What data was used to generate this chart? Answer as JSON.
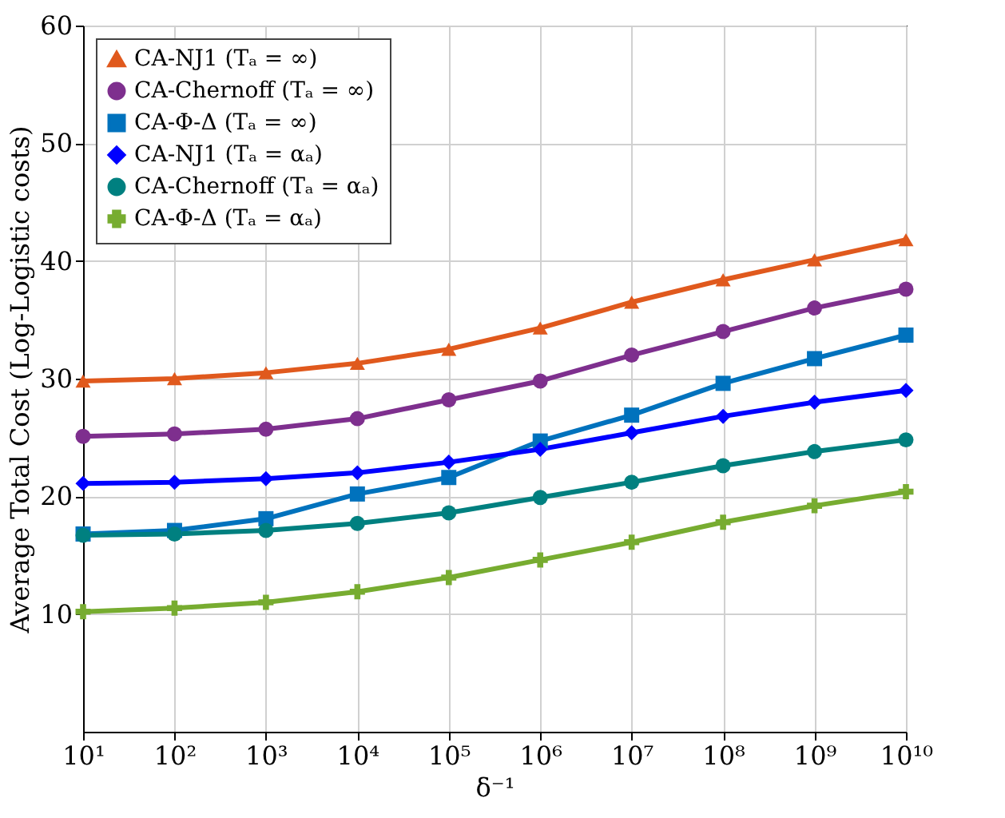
{
  "chart_data": {
    "type": "line",
    "xlabel": "δ⁻¹",
    "ylabel": "Average Total Cost (Log-Logistic costs)",
    "x": [
      10,
      100,
      1000,
      10000,
      100000,
      1000000,
      10000000,
      100000000,
      1000000000,
      10000000000
    ],
    "log": "x",
    "xlim": [
      10,
      10000000000
    ],
    "xticks": [
      {
        "value": 10,
        "label": "10¹"
      },
      {
        "value": 100,
        "label": "10²"
      },
      {
        "value": 1000,
        "label": "10³"
      },
      {
        "value": 10000,
        "label": "10⁴"
      },
      {
        "value": 100000,
        "label": "10⁵"
      },
      {
        "value": 1000000,
        "label": "10⁶"
      },
      {
        "value": 10000000,
        "label": "10⁷"
      },
      {
        "value": 100000000,
        "label": "10⁸"
      },
      {
        "value": 1000000000,
        "label": "10⁹"
      },
      {
        "value": 10000000000,
        "label": "10¹⁰"
      }
    ],
    "ylim": [
      0,
      60
    ],
    "yticks": [
      10,
      20,
      30,
      40,
      50,
      60
    ],
    "grid": true,
    "legend": "top left",
    "line_style": "solid",
    "series": [
      {
        "name": "CA-NJ1 (Tₐ = ∞)",
        "color": "#e0591d",
        "marker": "triangle",
        "values": [
          29.8,
          30.0,
          30.5,
          31.3,
          32.5,
          34.3,
          36.5,
          38.4,
          40.1,
          41.8
        ]
      },
      {
        "name": "CA-Chernoff (Tₐ = ∞)",
        "color": "#7e2f8e",
        "marker": "circle",
        "values": [
          25.1,
          25.3,
          25.7,
          26.6,
          28.2,
          29.8,
          32.0,
          34.0,
          36.0,
          37.6
        ]
      },
      {
        "name": "CA-Φ-Δ (Tₐ = ∞)",
        "color": "#0072bd",
        "marker": "square",
        "values": [
          16.8,
          17.1,
          18.1,
          20.2,
          21.6,
          24.7,
          26.9,
          29.6,
          31.7,
          33.7
        ]
      },
      {
        "name": "CA-NJ1 (Tₐ = αₐ)",
        "color": "#0000ff",
        "marker": "diamond",
        "values": [
          21.1,
          21.2,
          21.5,
          22.0,
          22.9,
          24.0,
          25.4,
          26.8,
          28.0,
          29.0
        ]
      },
      {
        "name": "CA-Chernoff (Tₐ = αₐ)",
        "color": "#008080",
        "marker": "circle",
        "values": [
          16.7,
          16.8,
          17.1,
          17.7,
          18.6,
          19.9,
          21.2,
          22.6,
          23.8,
          24.8
        ]
      },
      {
        "name": "CA-Φ-Δ (Tₐ = αₐ)",
        "color": "#77ac30",
        "marker": "cross",
        "values": [
          10.2,
          10.5,
          11.0,
          11.9,
          13.1,
          14.6,
          16.1,
          17.8,
          19.2,
          20.4
        ]
      }
    ]
  }
}
